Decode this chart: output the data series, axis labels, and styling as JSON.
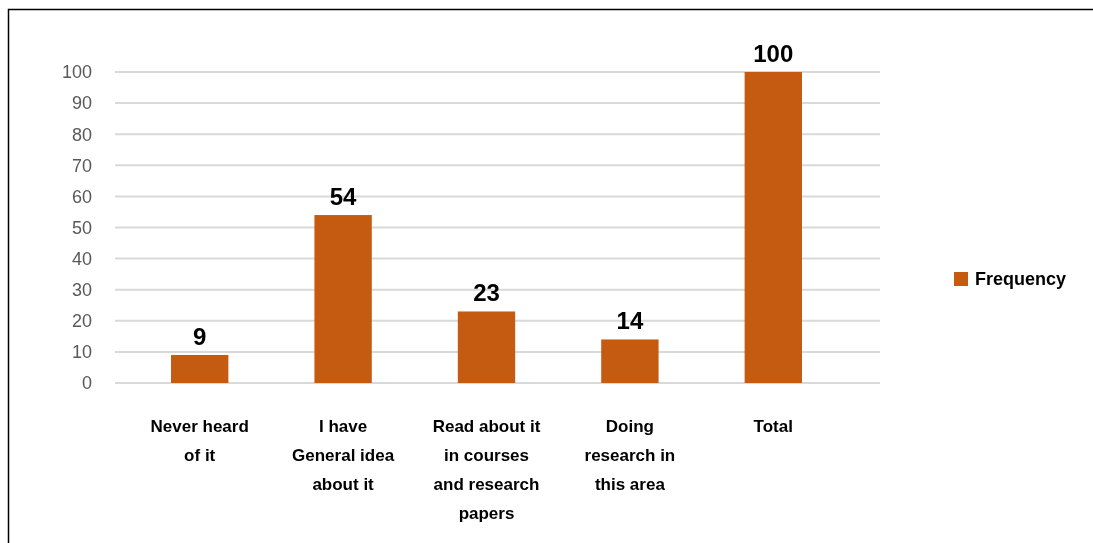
{
  "chart_data": {
    "type": "bar",
    "categories": [
      "Never heard of it",
      "I have General idea about it",
      "Read about it in courses and research papers",
      "Doing research in this area",
      "Total"
    ],
    "series": [
      {
        "name": "Frequency",
        "color": "#c55a11",
        "values": [
          9,
          54,
          23,
          14,
          100
        ]
      }
    ],
    "ylim": [
      0,
      100
    ],
    "yticks": [
      0,
      10,
      20,
      30,
      40,
      50,
      60,
      70,
      80,
      90,
      100
    ],
    "grid": "y",
    "legend": "right",
    "data_labels": true
  }
}
